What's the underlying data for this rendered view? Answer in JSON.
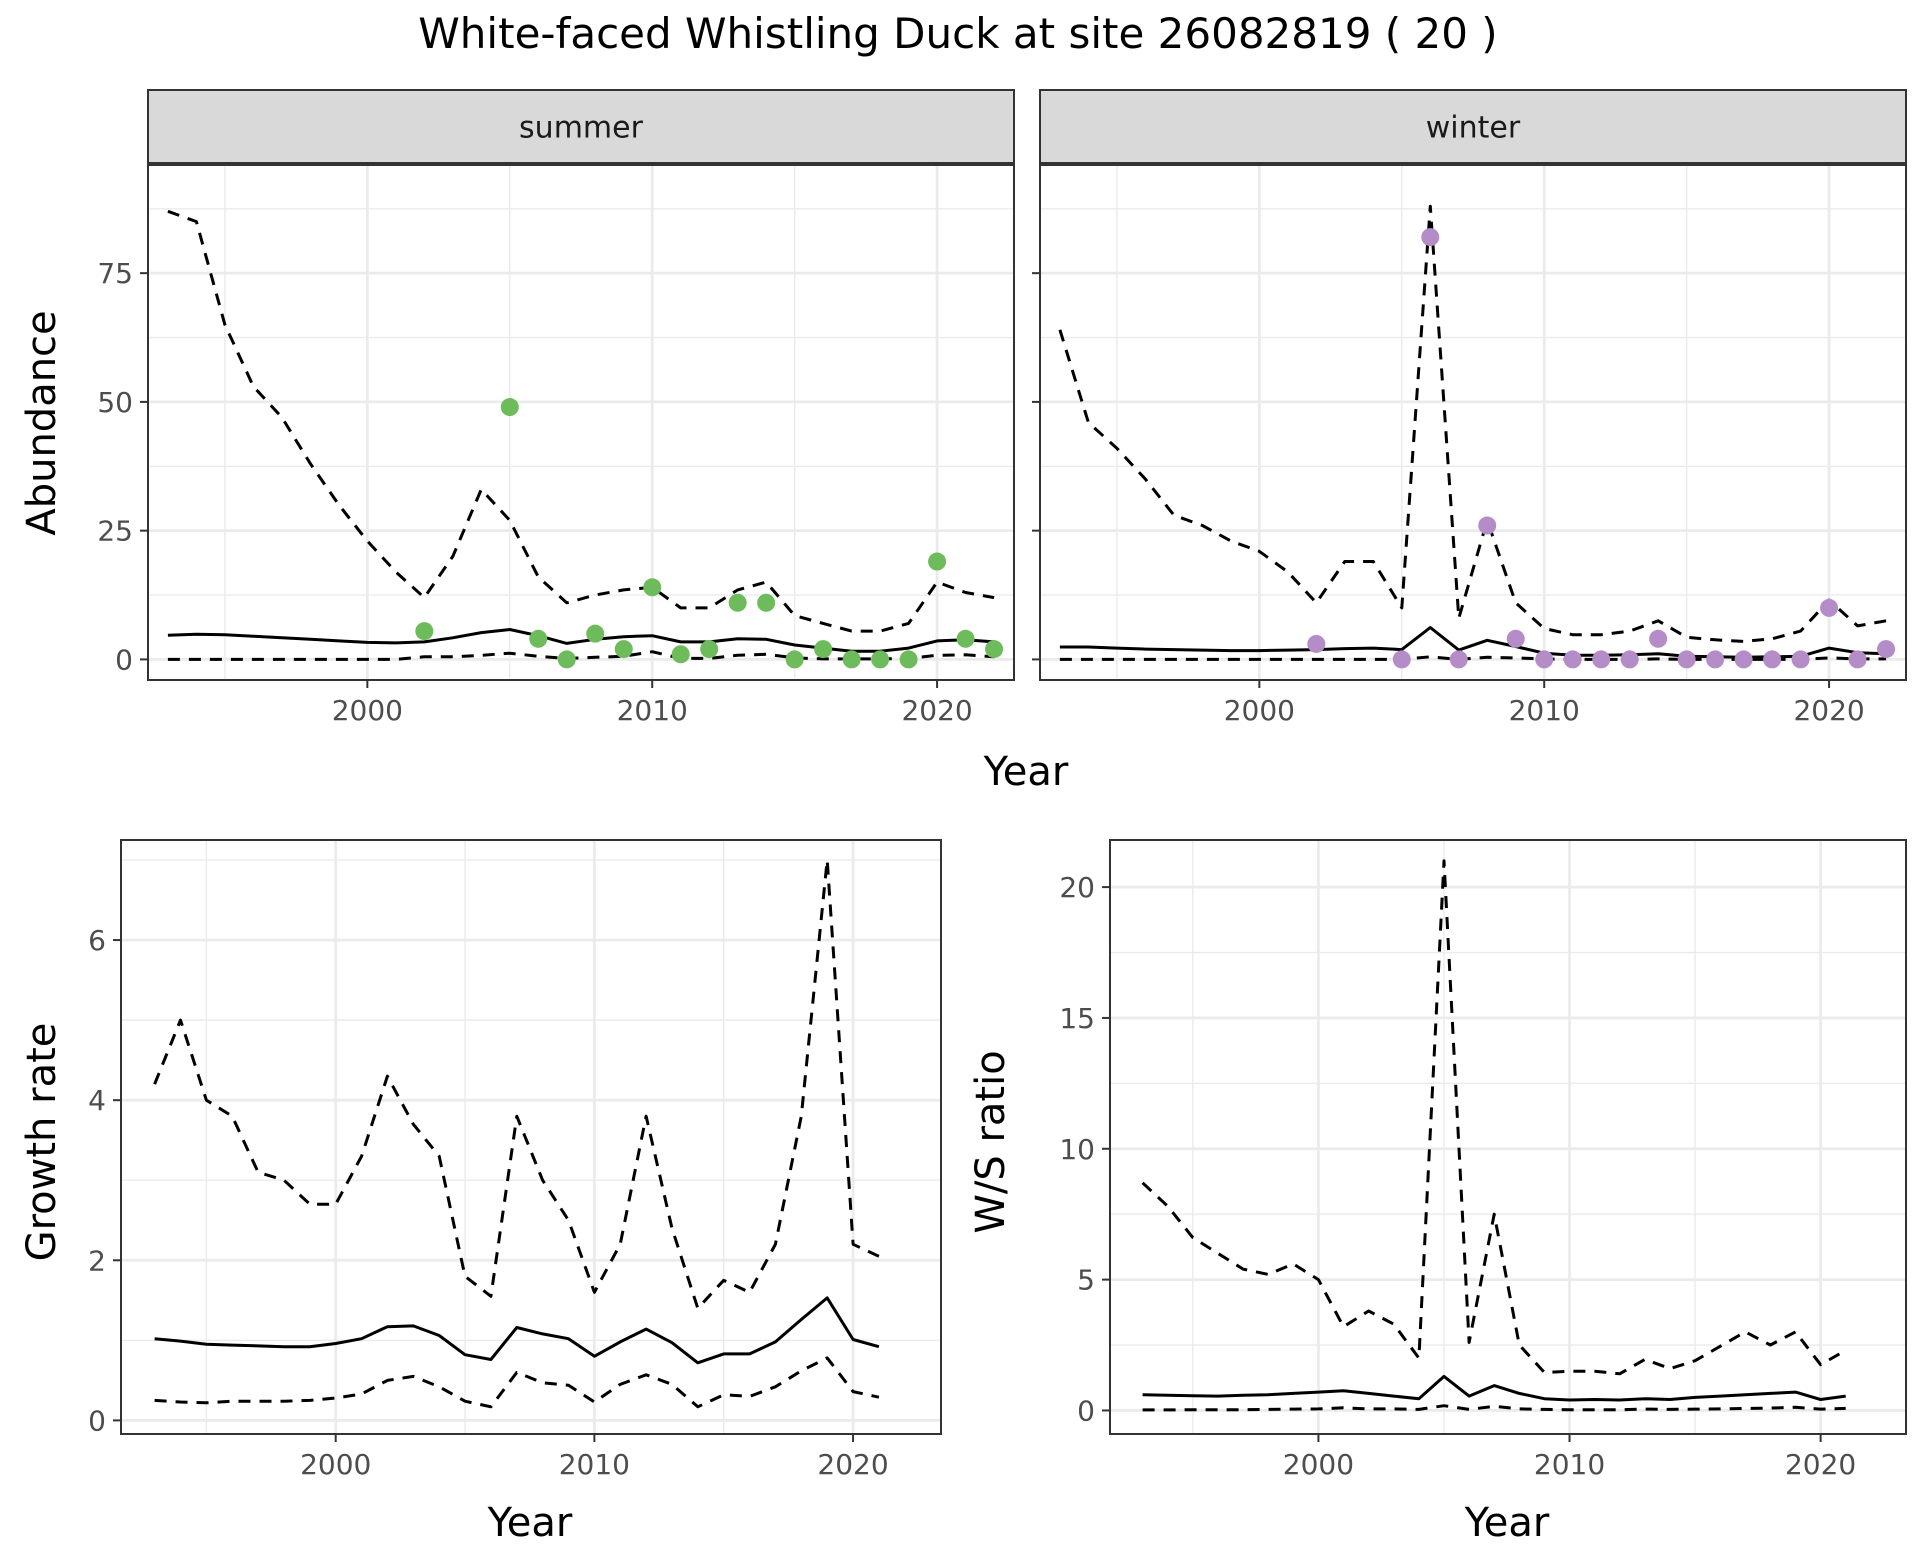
{
  "title": "White-faced Whistling Duck at site 26082819 ( 20 )",
  "colors": {
    "summer_points": "#6dbb5a",
    "winter_points": "#b48cc8",
    "line": "#000000",
    "grid": "#ebebeb",
    "strip_bg": "#d9d9d9",
    "panel_border": "#333333"
  },
  "chart_data": [
    {
      "id": "summer",
      "type": "line",
      "panel_label": "summer",
      "xlabel": "Year",
      "ylabel": "Abundance",
      "xlim": [
        1992.3,
        2022.7
      ],
      "ylim": [
        -4,
        96
      ],
      "xticks": [
        2000,
        2010,
        2020
      ],
      "xtick_labels": [
        "2000",
        "2010",
        "2020"
      ],
      "yticks": [
        0,
        25,
        50,
        75
      ],
      "ytick_labels": [
        "0",
        "25",
        "50",
        "75"
      ],
      "x": [
        1993,
        1994,
        1995,
        1996,
        1997,
        1998,
        1999,
        2000,
        2001,
        2002,
        2003,
        2004,
        2005,
        2006,
        2007,
        2008,
        2009,
        2010,
        2011,
        2012,
        2013,
        2014,
        2015,
        2016,
        2017,
        2018,
        2019,
        2020,
        2021,
        2022
      ],
      "series": [
        {
          "name": "estimate",
          "style": "solid",
          "values": [
            4.7,
            4.9,
            4.8,
            4.5,
            4.2,
            3.9,
            3.6,
            3.3,
            3.2,
            3.4,
            4.2,
            5.2,
            5.8,
            4.6,
            3.1,
            3.9,
            4.4,
            4.6,
            3.4,
            3.4,
            4.0,
            3.9,
            2.8,
            2.2,
            1.6,
            1.6,
            2.2,
            3.6,
            3.8,
            3.4
          ]
        },
        {
          "name": "upper",
          "style": "dashed",
          "values": [
            87,
            85,
            65,
            53,
            47,
            38,
            30,
            23,
            17,
            12,
            20,
            33,
            27,
            16,
            11,
            12.5,
            13.5,
            14,
            10,
            10,
            13.5,
            15,
            8.5,
            7,
            5.5,
            5.5,
            7,
            15,
            13,
            12
          ]
        },
        {
          "name": "lower",
          "style": "dashed",
          "values": [
            0,
            0,
            0,
            0,
            0,
            0,
            0,
            0,
            0,
            0.5,
            0.5,
            0.8,
            1.2,
            0.6,
            0.2,
            0.4,
            0.6,
            1.5,
            0.2,
            0.2,
            0.8,
            1.0,
            0.3,
            0.1,
            0.1,
            0.1,
            0.2,
            0.8,
            0.9,
            0.5
          ]
        }
      ],
      "points": {
        "x": [
          2002,
          2005,
          2006,
          2007,
          2008,
          2009,
          2010,
          2011,
          2012,
          2013,
          2014,
          2015,
          2016,
          2017,
          2018,
          2019,
          2020,
          2021,
          2022
        ],
        "values": [
          5.5,
          49,
          4,
          0,
          5,
          2,
          14,
          1,
          2,
          11,
          11,
          0,
          2,
          0,
          0,
          0,
          19,
          4,
          2
        ]
      }
    },
    {
      "id": "winter",
      "type": "line",
      "panel_label": "winter",
      "xlabel": "Year",
      "ylabel": "Abundance",
      "xlim": [
        1992.3,
        2022.7
      ],
      "ylim": [
        -4,
        96
      ],
      "xticks": [
        2000,
        2010,
        2020
      ],
      "xtick_labels": [
        "2000",
        "2010",
        "2020"
      ],
      "yticks": [
        0,
        25,
        50,
        75
      ],
      "ytick_labels": [
        "0",
        "25",
        "50",
        "75"
      ],
      "x": [
        1993,
        1994,
        1995,
        1996,
        1997,
        1998,
        1999,
        2000,
        2001,
        2002,
        2003,
        2004,
        2005,
        2006,
        2007,
        2008,
        2009,
        2010,
        2011,
        2012,
        2013,
        2014,
        2015,
        2016,
        2017,
        2018,
        2019,
        2020,
        2021,
        2022
      ],
      "series": [
        {
          "name": "estimate",
          "style": "solid",
          "values": [
            2.4,
            2.4,
            2.2,
            2.0,
            1.9,
            1.8,
            1.7,
            1.7,
            1.8,
            1.9,
            2.1,
            2.2,
            1.9,
            6.2,
            1.8,
            3.7,
            2.5,
            1.2,
            0.8,
            0.8,
            0.9,
            1.1,
            0.6,
            0.5,
            0.4,
            0.5,
            0.6,
            2.2,
            1.3,
            1.1
          ]
        },
        {
          "name": "upper",
          "style": "dashed",
          "values": [
            64,
            46,
            41,
            35,
            28,
            26,
            23,
            21,
            17,
            11,
            19,
            19,
            10,
            88,
            8,
            27,
            11,
            6,
            4.8,
            4.8,
            5.5,
            7.5,
            4.3,
            3.8,
            3.5,
            4,
            5.5,
            11.5,
            6.5,
            7.5
          ]
        },
        {
          "name": "lower",
          "style": "dashed",
          "values": [
            0,
            0,
            0,
            0,
            0,
            0,
            0,
            0,
            0,
            0,
            0,
            0,
            0,
            0.5,
            0,
            0.4,
            0.3,
            0.1,
            0,
            0,
            0,
            0.1,
            0,
            0,
            0,
            0,
            0,
            0.3,
            0.1,
            0.1
          ]
        }
      ],
      "points": {
        "x": [
          2002,
          2005,
          2006,
          2007,
          2008,
          2009,
          2010,
          2011,
          2012,
          2013,
          2014,
          2015,
          2016,
          2017,
          2018,
          2019,
          2020,
          2021,
          2022
        ],
        "values": [
          3,
          0,
          82,
          0,
          26,
          4,
          0,
          0,
          0,
          0,
          4,
          0,
          0,
          0,
          0,
          0,
          10,
          0,
          2
        ]
      }
    },
    {
      "id": "growth",
      "type": "line",
      "xlabel": "Year",
      "ylabel": "Growth rate",
      "xlim": [
        1991.7,
        2023.4
      ],
      "ylim": [
        -0.17,
        7.25
      ],
      "xticks": [
        2000,
        2010,
        2020
      ],
      "xtick_labels": [
        "2000",
        "2010",
        "2020"
      ],
      "yticks": [
        0,
        2,
        4,
        6
      ],
      "ytick_labels": [
        "0",
        "2",
        "4",
        "6"
      ],
      "x": [
        1993,
        1994,
        1995,
        1996,
        1997,
        1998,
        1999,
        2000,
        2001,
        2002,
        2003,
        2004,
        2005,
        2006,
        2007,
        2008,
        2009,
        2010,
        2011,
        2012,
        2013,
        2014,
        2015,
        2016,
        2017,
        2018,
        2019,
        2020,
        2021
      ],
      "series": [
        {
          "name": "estimate",
          "style": "solid",
          "values": [
            1.02,
            0.99,
            0.95,
            0.94,
            0.93,
            0.92,
            0.92,
            0.96,
            1.02,
            1.17,
            1.18,
            1.06,
            0.82,
            0.76,
            1.16,
            1.08,
            1.02,
            0.8,
            0.98,
            1.14,
            0.97,
            0.72,
            0.83,
            0.83,
            0.98,
            1.26,
            1.53,
            1.01,
            0.92
          ]
        },
        {
          "name": "upper",
          "style": "dashed",
          "values": [
            4.2,
            5.0,
            4.0,
            3.8,
            3.1,
            3.0,
            2.7,
            2.7,
            3.3,
            4.3,
            3.7,
            3.3,
            1.8,
            1.55,
            3.8,
            3.0,
            2.5,
            1.6,
            2.2,
            3.8,
            2.4,
            1.4,
            1.75,
            1.6,
            2.2,
            3.8,
            7.0,
            2.2,
            2.05
          ]
        },
        {
          "name": "lower",
          "style": "dashed",
          "values": [
            0.25,
            0.23,
            0.22,
            0.24,
            0.24,
            0.24,
            0.25,
            0.28,
            0.33,
            0.5,
            0.55,
            0.42,
            0.24,
            0.17,
            0.6,
            0.47,
            0.44,
            0.23,
            0.45,
            0.57,
            0.45,
            0.17,
            0.32,
            0.3,
            0.42,
            0.62,
            0.78,
            0.36,
            0.29
          ]
        }
      ]
    },
    {
      "id": "ratio",
      "type": "line",
      "xlabel": "Year",
      "ylabel": "W/S ratio",
      "xlim": [
        1991.7,
        2023.4
      ],
      "ylim": [
        -0.9,
        21.8
      ],
      "xticks": [
        2000,
        2010,
        2020
      ],
      "xtick_labels": [
        "2000",
        "2010",
        "2020"
      ],
      "yticks": [
        0,
        5,
        10,
        15,
        20
      ],
      "ytick_labels": [
        "0",
        "5",
        "10",
        "15",
        "20"
      ],
      "x": [
        1993,
        1994,
        1995,
        1996,
        1997,
        1998,
        1999,
        2000,
        2001,
        2002,
        2003,
        2004,
        2005,
        2006,
        2007,
        2008,
        2009,
        2010,
        2011,
        2012,
        2013,
        2014,
        2015,
        2016,
        2017,
        2018,
        2019,
        2020,
        2021
      ],
      "series": [
        {
          "name": "estimate",
          "style": "solid",
          "values": [
            0.6,
            0.58,
            0.56,
            0.55,
            0.58,
            0.6,
            0.65,
            0.7,
            0.75,
            0.65,
            0.55,
            0.45,
            1.3,
            0.55,
            0.95,
            0.65,
            0.45,
            0.4,
            0.42,
            0.4,
            0.45,
            0.42,
            0.5,
            0.55,
            0.6,
            0.65,
            0.7,
            0.42,
            0.55
          ]
        },
        {
          "name": "upper",
          "style": "dashed",
          "values": [
            8.7,
            7.8,
            6.6,
            6.0,
            5.4,
            5.2,
            5.6,
            5.0,
            3.2,
            3.8,
            3.3,
            2.0,
            21,
            2.6,
            7.5,
            2.5,
            1.45,
            1.5,
            1.5,
            1.4,
            1.95,
            1.6,
            1.9,
            2.45,
            3.0,
            2.5,
            3.0,
            1.75,
            2.3
          ]
        },
        {
          "name": "lower",
          "style": "dashed",
          "values": [
            0.02,
            0.02,
            0.03,
            0.03,
            0.03,
            0.04,
            0.05,
            0.06,
            0.1,
            0.06,
            0.06,
            0.04,
            0.18,
            0.04,
            0.16,
            0.06,
            0.04,
            0.03,
            0.03,
            0.03,
            0.05,
            0.04,
            0.05,
            0.06,
            0.08,
            0.09,
            0.12,
            0.05,
            0.08
          ]
        }
      ]
    }
  ]
}
